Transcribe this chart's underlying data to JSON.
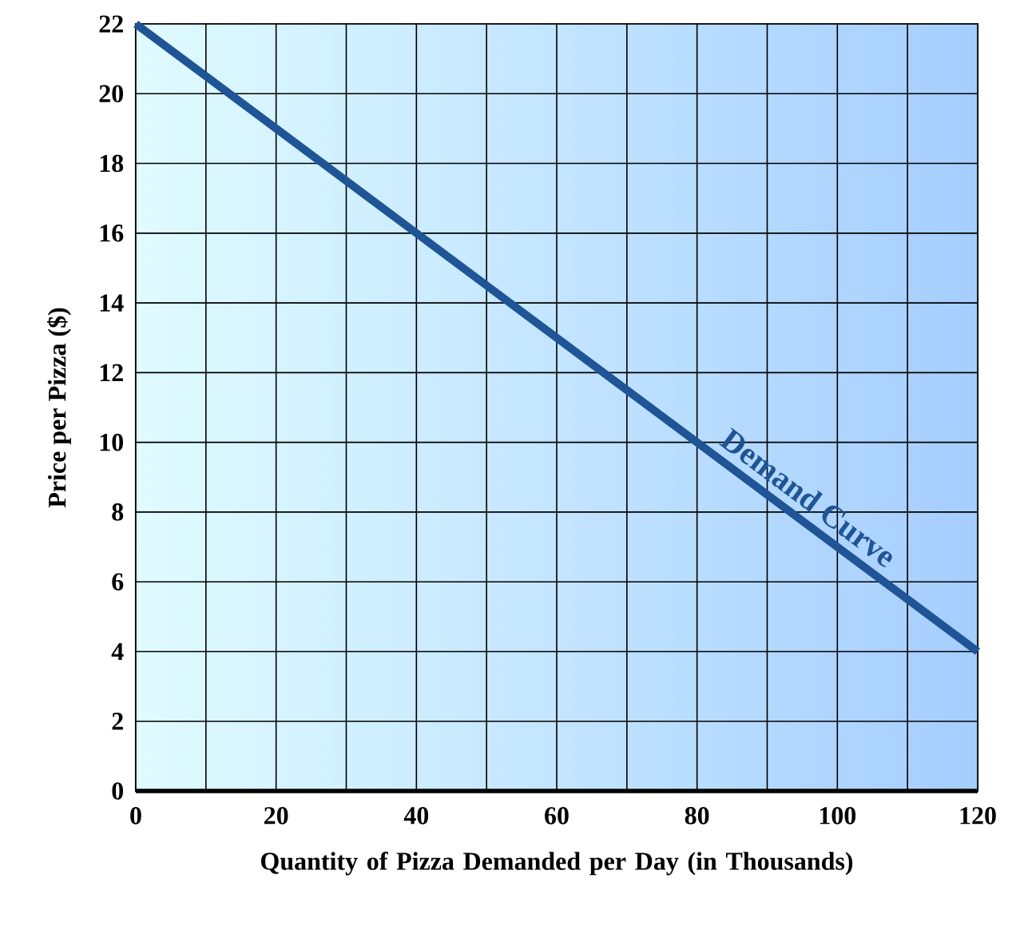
{
  "chart_data": {
    "type": "line",
    "xlabel": "Quantity of Pizza Demanded per Day (in Thousands)",
    "ylabel": "Price per Pizza ($)",
    "x": [
      0,
      120
    ],
    "series": [
      {
        "color": "#1f5496",
        "values": [
          22,
          4
        ]
      }
    ],
    "xlim": [
      0,
      120
    ],
    "ylim": [
      0,
      22
    ],
    "xticks": [
      0,
      {
        "value": 10,
        "label": null
      },
      20,
      {
        "value": 30,
        "label": null
      },
      40,
      {
        "value": 50,
        "label": null
      },
      60,
      {
        "value": 70,
        "label": null
      },
      80,
      {
        "value": 90,
        "label": null
      },
      100,
      {
        "value": 110,
        "label": null
      },
      120
    ],
    "yticks": [
      0,
      2,
      4,
      6,
      8,
      10,
      12,
      14,
      16,
      18,
      20,
      22
    ],
    "grid": true,
    "marker": "none",
    "line_style": "solid",
    "annotations": [
      {
        "text": "Demand Curve",
        "x": 94,
        "y": 7.9
      }
    ]
  }
}
